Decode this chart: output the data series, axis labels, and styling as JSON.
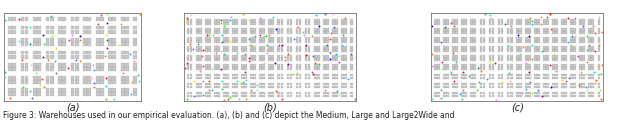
{
  "caption": "Figure 3: Warehouses used in our empirical evaluation. (a), (b) and (c) depict the Medium, Large and Large2Wide and",
  "label_a": "(a)",
  "label_b": "(b)",
  "label_c": "(c)",
  "bg_color": "#ffffff",
  "caption_fontsize": 5.5,
  "label_fontsize": 7,
  "fig_width": 6.4,
  "fig_height": 1.29,
  "shelf_color": "#c8c8c8",
  "shelf_edge_color": "#999999",
  "spine_color": "#555555",
  "agent_colors": [
    "#e74c3c",
    "#3498db",
    "#2ecc71",
    "#f39c12",
    "#9b59b6",
    "#1abc9c",
    "#e67e22",
    "#ff69b4",
    "#00ced1",
    "#ff4500",
    "#7fff00",
    "#dc143c",
    "#00bfff",
    "#ff8c00",
    "#adff2f",
    "#ff1493",
    "#00fa9a",
    "#ffd700",
    "#4169e1",
    "#ff6347",
    "#40e0d0",
    "#ee82ee",
    "#cd853f",
    "#90ee90",
    "#ffb6c1",
    "#800080",
    "#008080",
    "#ff0000",
    "#0000ff",
    "#00ff00"
  ],
  "medium_ncols": 33,
  "medium_nrows": 21,
  "large_ncols": 57,
  "large_nrows": 29,
  "large2_ncols": 57,
  "large2_nrows": 29,
  "medium_n_agents": 60,
  "large_n_agents": 120,
  "large2_n_agents": 100
}
